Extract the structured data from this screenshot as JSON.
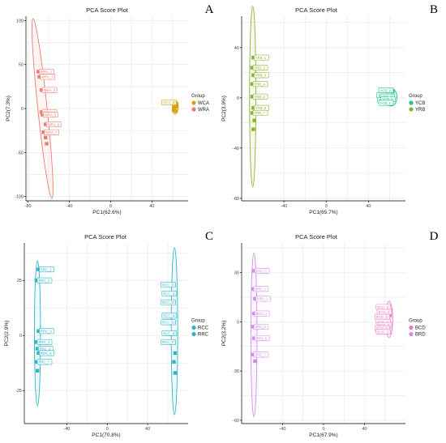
{
  "chart_data": [
    {
      "type": "scatter",
      "panel_letter": "A",
      "title": "PCA Score Plot",
      "xlabel": "PC1(62.6%)",
      "ylabel": "PC2(7.3%)",
      "xlim": [
        -82,
        75
      ],
      "ylim": [
        -105,
        105
      ],
      "xticks": [
        -80,
        -40,
        0,
        40
      ],
      "yticks": [
        -100,
        -50,
        0,
        50,
        100
      ],
      "legend_title": "Group",
      "series": [
        {
          "name": "WCA",
          "color": "#d4a419",
          "points": [
            [
              62,
              7
            ],
            [
              63,
              4
            ],
            [
              61,
              1
            ],
            [
              64,
              2
            ],
            [
              62,
              -1
            ],
            [
              63,
              -3
            ],
            [
              61,
              -2
            ],
            [
              64,
              5
            ],
            [
              62,
              3
            ]
          ],
          "ellipse": {
            "cx": 62.5,
            "cy": 1.5,
            "rx": 2.8,
            "ry": 8,
            "angle_deg": 0
          },
          "labels": [
            "WCA_6"
          ]
        },
        {
          "name": "WRA",
          "color": "#ec7c72",
          "points": [
            [
              -70,
              42
            ],
            [
              -69,
              36
            ],
            [
              -67,
              21
            ],
            [
              -67,
              -4
            ],
            [
              -66,
              -7
            ],
            [
              -63,
              -18
            ],
            [
              -65,
              -27
            ],
            [
              -63,
              -33
            ],
            [
              -62,
              -40
            ]
          ],
          "ellipse": {
            "cx": -66,
            "cy": 0,
            "rx": 4.5,
            "ry": 103,
            "angle_deg": -6
          },
          "labels": [
            "WRA_1",
            "WRA_2",
            "WRA_3",
            "WRA_4",
            "WRA_5",
            "WRA_6",
            "WRA_7"
          ]
        }
      ]
    },
    {
      "type": "scatter",
      "panel_letter": "B",
      "title": "PCA Score Plot",
      "xlabel": "PC1(65.7%)",
      "ylabel": "PC2(3.9%)",
      "xlim": [
        -80,
        75
      ],
      "ylim": [
        -82,
        65
      ],
      "xticks": [
        -40,
        0,
        40
      ],
      "yticks": [
        -80,
        -40,
        0,
        40
      ],
      "legend_title": "Group",
      "series": [
        {
          "name": "YCB",
          "color": "#25c28a",
          "points": [
            [
              62,
              6
            ],
            [
              60,
              2
            ],
            [
              63,
              1
            ],
            [
              61,
              -2
            ],
            [
              64,
              -1
            ],
            [
              62,
              -4
            ],
            [
              59,
              3
            ],
            [
              63,
              5
            ],
            [
              61,
              -5
            ]
          ],
          "ellipse": {
            "cx": 61.5,
            "cy": 0.5,
            "rx": 5.5,
            "ry": 7,
            "angle_deg": 0
          },
          "labels": [
            "YCB_1",
            "YCB_3",
            "YCB_4",
            "YCB_5",
            "YCB_6",
            "YCB_7"
          ]
        },
        {
          "name": "YRB",
          "color": "#8fb133",
          "points": [
            [
              -69,
              32
            ],
            [
              -70,
              24
            ],
            [
              -69,
              18
            ],
            [
              -70,
              11
            ],
            [
              -70,
              1
            ],
            [
              -69,
              -8
            ],
            [
              -70,
              -12
            ],
            [
              -68,
              -18
            ],
            [
              -69,
              -25
            ]
          ],
          "ellipse": {
            "cx": -69.5,
            "cy": 1,
            "rx": 3,
            "ry": 72,
            "angle_deg": 0
          },
          "labels": [
            "YRB_1",
            "YRB_2",
            "YRB_3",
            "YRB_4",
            "YRB_5",
            "YRB_6",
            "YRB_7"
          ]
        }
      ]
    },
    {
      "type": "scatter",
      "panel_letter": "C",
      "title": "PCA Score Plot",
      "xlabel": "PC1(70.8%)",
      "ylabel": "PC2(2.9%)",
      "xlim": [
        -82,
        80
      ],
      "ylim": [
        -40,
        42
      ],
      "xticks": [
        -40,
        0,
        40
      ],
      "yticks": [
        -25,
        0,
        25
      ],
      "legend_title": "Group",
      "series": [
        {
          "name": "RCC",
          "color": "#2fb5c5",
          "points": [
            [
              66,
              23
            ],
            [
              67,
              19
            ],
            [
              66,
              15
            ],
            [
              67,
              9
            ],
            [
              66,
              6
            ],
            [
              67,
              1
            ],
            [
              66,
              -3
            ],
            [
              67,
              -8
            ],
            [
              66,
              -12
            ],
            [
              67,
              -17
            ]
          ],
          "ellipse": {
            "cx": 66.5,
            "cy": 2,
            "rx": 3.2,
            "ry": 38,
            "angle_deg": 0
          },
          "labels": [
            "RCC_1",
            "RCC_2",
            "RCC_3",
            "RCC_4",
            "RCC_5",
            "RCC_6",
            "RCC_7"
          ]
        },
        {
          "name": "RRC",
          "color": "#2fb5c5",
          "points": [
            [
              -68,
              30
            ],
            [
              -70,
              25
            ],
            [
              -68,
              2
            ],
            [
              -70,
              -3
            ],
            [
              -69,
              -6
            ],
            [
              -68,
              -8
            ],
            [
              -70,
              -12
            ],
            [
              -69,
              -16
            ]
          ],
          "ellipse": {
            "cx": -69,
            "cy": 1,
            "rx": 3,
            "ry": 33,
            "angle_deg": 0
          },
          "labels": [
            "RRC_1",
            "RRC_2",
            "RRC_3",
            "RRC_4",
            "RRC_5",
            "RRC_6",
            "RRC_7"
          ]
        }
      ]
    },
    {
      "type": "scatter",
      "panel_letter": "D",
      "title": "PCA Score Plot",
      "xlabel": "PC1(67.9%)",
      "ylabel": "PC2(3.2%)",
      "xlim": [
        -80,
        80
      ],
      "ylim": [
        -62,
        48
      ],
      "xticks": [
        -40,
        0,
        40
      ],
      "yticks": [
        -60,
        -30,
        0,
        30
      ],
      "legend_title": "Group",
      "series": [
        {
          "name": "BCD",
          "color": "#ef7cc0",
          "points": [
            [
              64,
              9
            ],
            [
              65,
              6
            ],
            [
              63,
              3
            ],
            [
              64,
              0
            ],
            [
              65,
              -2
            ],
            [
              63,
              -4
            ],
            [
              64,
              -6
            ],
            [
              65,
              4
            ],
            [
              63,
              -1
            ]
          ],
          "ellipse": {
            "cx": 64,
            "cy": 1.5,
            "rx": 3.5,
            "ry": 11,
            "angle_deg": 0
          },
          "labels": [
            "BCD_1",
            "BCD_2",
            "BCD_3",
            "BCD_4",
            "BCD_5",
            "BCD_6",
            "BCD_7"
          ]
        },
        {
          "name": "BRD",
          "color": "#d18ee8",
          "points": [
            [
              -68,
              31
            ],
            [
              -69,
              20
            ],
            [
              -67,
              14
            ],
            [
              -68,
              5
            ],
            [
              -69,
              -3
            ],
            [
              -68,
              -10
            ],
            [
              -69,
              -20
            ],
            [
              -67,
              -24
            ]
          ],
          "ellipse": {
            "cx": -68,
            "cy": -8,
            "rx": 3,
            "ry": 50,
            "angle_deg": 0
          },
          "labels": [
            "BRD_1",
            "BRD_2",
            "BRD_3",
            "BRD_4",
            "BRD_5",
            "BRD_6",
            "BRD_7"
          ]
        }
      ]
    }
  ]
}
